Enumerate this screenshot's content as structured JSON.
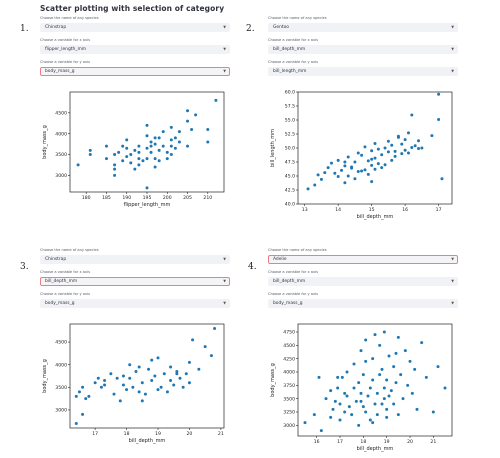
{
  "page": {
    "title": "Scatter plotting with selection of category"
  },
  "panels": [
    {
      "number": "1.",
      "species_label": "Choose the name of any species",
      "species_value": "Chinstrap",
      "xvar_label": "Choose a variable for x axis",
      "xvar_value": "flipper_length_mm",
      "yvar_label": "Choose a variable for y axis",
      "yvar_value": "body_mass_g",
      "active_field": "y"
    },
    {
      "number": "2.",
      "species_label": "Choose the name of any species",
      "species_value": "Gentoo",
      "xvar_label": "Choose a variable for x axis",
      "xvar_value": "bill_depth_mm",
      "yvar_label": "Choose a variable for y axis",
      "yvar_value": "bill_length_mm",
      "active_field": ""
    },
    {
      "number": "3.",
      "species_label": "Choose the name of any species",
      "species_value": "Chinstrap",
      "xvar_label": "Choose a variable for x axis",
      "xvar_value": "bill_depth_mm",
      "yvar_label": "Choose a variable for y axis",
      "yvar_value": "body_mass_g",
      "active_field": "x"
    },
    {
      "number": "4.",
      "species_label": "Choose the name of any species",
      "species_value": "Adelie",
      "xvar_label": "Choose a variable for x axis",
      "xvar_value": "bill_depth_mm",
      "yvar_label": "Choose a variable for y axis",
      "yvar_value": "body_mass_g",
      "active_field": "species"
    }
  ],
  "colors": {
    "point": "#1f77b4",
    "active_border": "#e6808b",
    "select_bg": "#f0f2f6"
  },
  "icons": {
    "dropdown": "chevron-down-icon"
  },
  "chart_data": [
    {
      "type": "scatter",
      "xlabel": "flipper_length_mm",
      "ylabel": "body_mass_g",
      "xlim": [
        176,
        214
      ],
      "ylim": [
        2600,
        5000
      ],
      "xticks": [
        180,
        185,
        190,
        195,
        200,
        205,
        210
      ],
      "yticks": [
        3000,
        3500,
        4000,
        4500
      ],
      "x": [
        178,
        181,
        181,
        185,
        185,
        187,
        187,
        187,
        187,
        188,
        189,
        189,
        190,
        190,
        190,
        191,
        191,
        192,
        192,
        193,
        193,
        193,
        193,
        194,
        195,
        195,
        195,
        195,
        195,
        196,
        196,
        196,
        197,
        197,
        197,
        197,
        198,
        198,
        198,
        199,
        199,
        200,
        200,
        201,
        201,
        201,
        201,
        202,
        202,
        203,
        203,
        205,
        205,
        205,
        206,
        207,
        210,
        210,
        212
      ],
      "y": [
        3250,
        3600,
        3500,
        3700,
        3400,
        3500,
        3250,
        3150,
        3000,
        3550,
        3700,
        3350,
        3850,
        3650,
        3450,
        3500,
        3300,
        3600,
        3150,
        3400,
        3550,
        3700,
        3250,
        3350,
        4200,
        3950,
        3650,
        3400,
        2700,
        3800,
        3700,
        3550,
        3750,
        3900,
        3400,
        3200,
        3900,
        3600,
        3350,
        4050,
        3700,
        3550,
        3400,
        4150,
        3850,
        3700,
        3500,
        3900,
        3650,
        4050,
        3800,
        4550,
        4300,
        3700,
        4100,
        4450,
        4100,
        3800,
        4800
      ]
    },
    {
      "type": "scatter",
      "xlabel": "bill_depth_mm",
      "ylabel": "bill_length_mm",
      "xlim": [
        12.8,
        17.4
      ],
      "ylim": [
        40,
        60
      ],
      "xticks": [
        13,
        14,
        15,
        16,
        17
      ],
      "yticks": [
        40.0,
        42.5,
        45.0,
        47.5,
        50.0,
        52.5,
        55.0,
        57.5,
        60.0
      ],
      "x": [
        13.1,
        13.3,
        13.5,
        13.7,
        13.4,
        13.8,
        13.9,
        14.0,
        14.1,
        14.2,
        14.2,
        14.3,
        14.3,
        14.4,
        14.5,
        14.5,
        14.6,
        14.6,
        14.7,
        14.8,
        14.8,
        14.9,
        14.9,
        15.0,
        15.0,
        15.0,
        15.1,
        15.1,
        15.2,
        15.2,
        15.3,
        15.3,
        15.4,
        15.5,
        15.5,
        15.6,
        15.6,
        15.7,
        15.8,
        15.9,
        15.9,
        16.0,
        16.0,
        16.1,
        16.2,
        16.3,
        16.4,
        16.5,
        16.8,
        17.0,
        17.0,
        17.1,
        13.6,
        14.0,
        14.4,
        14.7,
        15.0,
        15.4,
        15.7,
        16.1,
        16.4,
        14.2,
        15.1,
        15.8,
        16.2
      ],
      "y": [
        42.7,
        43.4,
        44.4,
        46.5,
        45.2,
        47.3,
        45.5,
        44.9,
        46.0,
        46.8,
        43.8,
        48.4,
        45.0,
        46.6,
        47.5,
        44.5,
        49.1,
        45.8,
        48.7,
        46.1,
        50.2,
        47.7,
        45.3,
        49.5,
        46.9,
        44.0,
        48.2,
        50.8,
        47.2,
        49.8,
        46.5,
        48.8,
        50.0,
        49.3,
        51.2,
        47.8,
        50.5,
        48.5,
        52.1,
        49.0,
        50.7,
        51.5,
        49.6,
        49.1,
        55.9,
        50.4,
        51.3,
        50.0,
        52.2,
        59.6,
        55.1,
        44.5,
        45.6,
        47.8,
        46.4,
        45.9,
        48.0,
        47.0,
        49.4,
        52.7,
        49.9,
        47.5,
        46.2,
        51.9,
        50.1
      ]
    },
    {
      "type": "scatter",
      "xlabel": "bill_depth_mm",
      "ylabel": "body_mass_g",
      "xlim": [
        16.2,
        21.1
      ],
      "ylim": [
        2600,
        4900
      ],
      "xticks": [
        17,
        18,
        19,
        20,
        21
      ],
      "yticks": [
        3000,
        3500,
        4000,
        4500
      ],
      "x": [
        16.4,
        16.4,
        16.5,
        16.6,
        16.6,
        16.7,
        16.8,
        17.0,
        17.1,
        17.3,
        17.3,
        17.5,
        17.6,
        17.7,
        17.8,
        17.9,
        17.9,
        18.0,
        18.1,
        18.1,
        18.2,
        18.3,
        18.4,
        18.4,
        18.5,
        18.6,
        18.7,
        18.8,
        18.8,
        18.9,
        19.0,
        19.0,
        19.1,
        19.2,
        19.3,
        19.4,
        19.4,
        19.5,
        19.6,
        19.7,
        19.8,
        19.9,
        20.0,
        20.0,
        20.1,
        20.3,
        20.5,
        20.7,
        20.8,
        17.2,
        18.5,
        19.6
      ],
      "y": [
        3300,
        2700,
        3400,
        3500,
        2900,
        3250,
        3300,
        3600,
        3700,
        3650,
        3550,
        3800,
        3350,
        3700,
        3200,
        3750,
        3550,
        3450,
        4000,
        3700,
        3500,
        3850,
        3950,
        3400,
        3600,
        3350,
        3900,
        4100,
        3650,
        3750,
        4150,
        3450,
        3500,
        3800,
        3400,
        3950,
        3650,
        3550,
        3850,
        3700,
        3500,
        3800,
        4050,
        3600,
        4550,
        3900,
        4400,
        4200,
        4800,
        3500,
        3200,
        3800
      ]
    },
    {
      "type": "scatter",
      "xlabel": "bill_depth_mm",
      "ylabel": "body_mass_g",
      "xlim": [
        15.2,
        21.8
      ],
      "ylim": [
        2800,
        4900
      ],
      "xticks": [
        16,
        17,
        18,
        19,
        20,
        21
      ],
      "yticks": [
        3000,
        3250,
        3500,
        3750,
        4000,
        4250,
        4500,
        4750
      ],
      "x": [
        15.5,
        15.9,
        16.1,
        16.2,
        16.4,
        16.6,
        16.6,
        16.7,
        16.8,
        16.9,
        17.0,
        17.0,
        17.1,
        17.2,
        17.3,
        17.3,
        17.4,
        17.5,
        17.6,
        17.6,
        17.7,
        17.8,
        17.8,
        17.9,
        17.9,
        18.0,
        18.0,
        18.1,
        18.1,
        18.2,
        18.3,
        18.3,
        18.4,
        18.4,
        18.5,
        18.5,
        18.6,
        18.6,
        18.7,
        18.7,
        18.8,
        18.8,
        18.9,
        18.9,
        19.0,
        19.0,
        19.1,
        19.1,
        19.2,
        19.3,
        19.3,
        19.4,
        19.5,
        19.5,
        19.6,
        19.7,
        19.8,
        19.9,
        20.0,
        20.1,
        20.2,
        20.3,
        20.5,
        20.7,
        21.0,
        21.2,
        21.5,
        17.2,
        17.9,
        18.4,
        18.9,
        19.4,
        16.9,
        18.1,
        19.0
      ],
      "y": [
        3050,
        3200,
        3900,
        2900,
        3500,
        3150,
        3650,
        3300,
        3450,
        3700,
        3100,
        3400,
        3900,
        3250,
        3550,
        4000,
        3350,
        3200,
        3700,
        4150,
        3450,
        3000,
        3800,
        3600,
        4400,
        3350,
        3950,
        3250,
        4600,
        3550,
        3100,
        3700,
        3850,
        4250,
        3400,
        4700,
        3600,
        3200,
        3950,
        4500,
        3400,
        4050,
        3700,
        4750,
        3300,
        3850,
        3550,
        4300,
        3650,
        4100,
        3400,
        3800,
        4650,
        3200,
        3950,
        3500,
        4400,
        3750,
        4200,
        3600,
        4050,
        3300,
        4550,
        3900,
        3250,
        4100,
        3700,
        3600,
        3450,
        3050,
        3500,
        4350,
        3900,
        4200,
        3150
      ]
    }
  ]
}
